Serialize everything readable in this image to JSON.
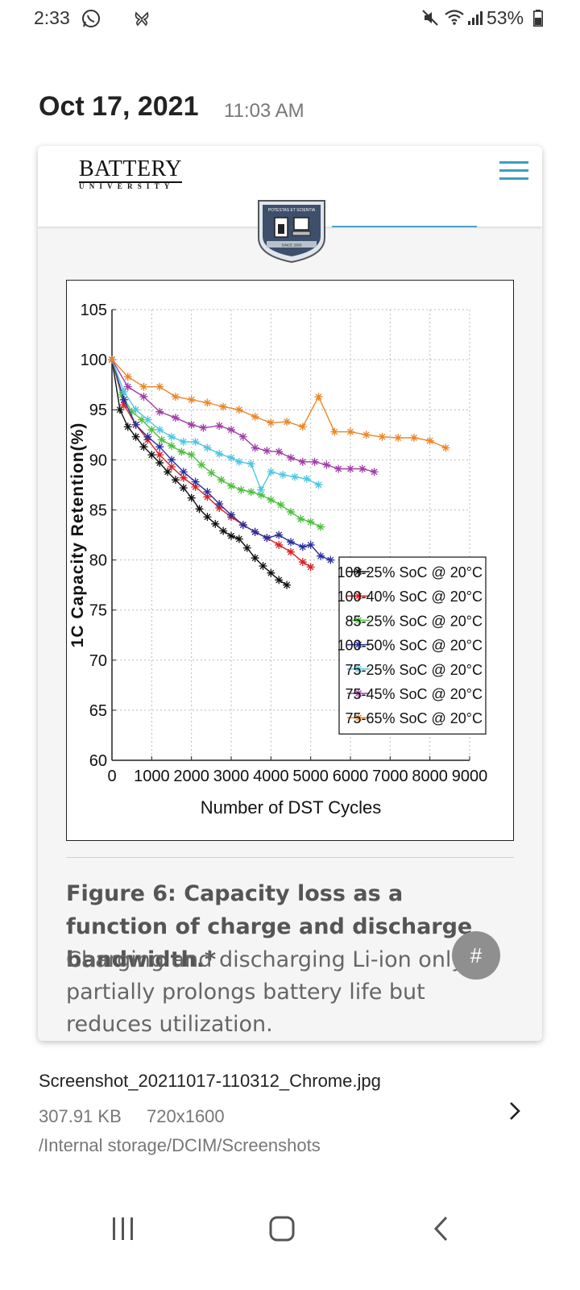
{
  "status_bar": {
    "time": "2:33",
    "battery": "53%",
    "icons": [
      "whatsapp-icon",
      "butterfly-icon",
      "mute-icon",
      "wifi-icon",
      "signal-icon",
      "battery-icon"
    ]
  },
  "header": {
    "date": "Oct 17, 2021",
    "time": "11:03 AM"
  },
  "site": {
    "logo_main": "BATTERY",
    "logo_sub": "UNIVERSITY",
    "emblem_top": "POTESTAS ET SCIENTIA",
    "emblem_bottom": "SINCE 2003",
    "menu_icon": "hamburger-menu-icon",
    "accent_color": "#3a9fc1"
  },
  "chart_data": {
    "type": "line",
    "xlabel": "Number of DST Cycles",
    "ylabel": "1C Capacity Retention(%)",
    "xlim": [
      0,
      9000
    ],
    "ylim": [
      60,
      105
    ],
    "x_ticks": [
      "0",
      "1000",
      "2000",
      "3000",
      "4000",
      "5000",
      "6000",
      "7000",
      "8000",
      "9000"
    ],
    "y_ticks": [
      "60",
      "65",
      "70",
      "75",
      "80",
      "85",
      "90",
      "95",
      "100",
      "105"
    ],
    "grid": true,
    "legend_position": "lower-right",
    "series": [
      {
        "name": "100-25% SoC @ 20°C",
        "color": "#111111",
        "points": [
          [
            0,
            100
          ],
          [
            200,
            95
          ],
          [
            400,
            93.3
          ],
          [
            600,
            92.3
          ],
          [
            800,
            91.3
          ],
          [
            1000,
            90.5
          ],
          [
            1200,
            89.7
          ],
          [
            1400,
            88.8
          ],
          [
            1600,
            88
          ],
          [
            1800,
            87.2
          ],
          [
            2000,
            86.2
          ],
          [
            2200,
            85.1
          ],
          [
            2400,
            84.3
          ],
          [
            2600,
            83.6
          ],
          [
            2800,
            82.9
          ],
          [
            3000,
            82.4
          ],
          [
            3200,
            82.1
          ],
          [
            3400,
            81.2
          ],
          [
            3600,
            80.2
          ],
          [
            3800,
            79.4
          ],
          [
            4000,
            78.7
          ],
          [
            4200,
            78
          ],
          [
            4400,
            77.5
          ]
        ]
      },
      {
        "name": "100-40% SoC @ 20°C",
        "color": "#d92027",
        "points": [
          [
            0,
            100
          ],
          [
            300,
            95.5
          ],
          [
            600,
            93.5
          ],
          [
            900,
            92
          ],
          [
            1200,
            90.5
          ],
          [
            1500,
            89.3
          ],
          [
            1800,
            88.2
          ],
          [
            2100,
            87.3
          ],
          [
            2400,
            86.3
          ],
          [
            2700,
            85.2
          ],
          [
            3000,
            84.3
          ],
          [
            3300,
            83.5
          ],
          [
            3600,
            82.8
          ],
          [
            3900,
            82.2
          ],
          [
            4200,
            81.5
          ],
          [
            4500,
            80.8
          ],
          [
            4800,
            79.8
          ],
          [
            5000,
            79.3
          ]
        ]
      },
      {
        "name": "85-25% SoC @ 20°C",
        "color": "#4fbf3f",
        "points": [
          [
            0,
            100
          ],
          [
            250,
            96.5
          ],
          [
            500,
            94.8
          ],
          [
            750,
            94
          ],
          [
            1000,
            93
          ],
          [
            1250,
            92
          ],
          [
            1500,
            91.4
          ],
          [
            1750,
            90.8
          ],
          [
            2000,
            90.5
          ],
          [
            2250,
            89.5
          ],
          [
            2500,
            88.7
          ],
          [
            2750,
            88
          ],
          [
            3000,
            87.4
          ],
          [
            3250,
            87
          ],
          [
            3500,
            86.8
          ],
          [
            3750,
            86.5
          ],
          [
            4000,
            86
          ],
          [
            4250,
            85.5
          ],
          [
            4500,
            84.8
          ],
          [
            4750,
            84.1
          ],
          [
            5000,
            83.8
          ],
          [
            5250,
            83.3
          ]
        ]
      },
      {
        "name": "100-50% SoC @ 20°C",
        "color": "#2a2f9e",
        "points": [
          [
            0,
            100
          ],
          [
            300,
            96
          ],
          [
            600,
            93.5
          ],
          [
            900,
            92.3
          ],
          [
            1200,
            91.3
          ],
          [
            1500,
            90
          ],
          [
            1800,
            88.8
          ],
          [
            2100,
            87.8
          ],
          [
            2400,
            86.8
          ],
          [
            2700,
            85.6
          ],
          [
            3000,
            84.5
          ],
          [
            3300,
            83.5
          ],
          [
            3600,
            82.8
          ],
          [
            3900,
            82.2
          ],
          [
            4200,
            82.5
          ],
          [
            4500,
            81.8
          ],
          [
            4800,
            81.3
          ],
          [
            5000,
            81.5
          ],
          [
            5250,
            80.4
          ],
          [
            5500,
            80
          ]
        ]
      },
      {
        "name": "75-25% SoC @ 20°C",
        "color": "#4ec6e0",
        "points": [
          [
            0,
            100
          ],
          [
            300,
            96.8
          ],
          [
            600,
            95
          ],
          [
            900,
            94
          ],
          [
            1200,
            93
          ],
          [
            1500,
            92.3
          ],
          [
            1800,
            91.8
          ],
          [
            2100,
            91.8
          ],
          [
            2400,
            91.2
          ],
          [
            2700,
            90.6
          ],
          [
            3000,
            90.2
          ],
          [
            3200,
            89.8
          ],
          [
            3500,
            89.6
          ],
          [
            3750,
            87
          ],
          [
            4000,
            88.8
          ],
          [
            4300,
            88.5
          ],
          [
            4600,
            88.3
          ],
          [
            4900,
            88.1
          ],
          [
            5200,
            87.5
          ]
        ]
      },
      {
        "name": "75-45% SoC @ 20°C",
        "color": "#a03ea8",
        "points": [
          [
            0,
            100
          ],
          [
            400,
            97.3
          ],
          [
            800,
            96.3
          ],
          [
            1200,
            94.8
          ],
          [
            1600,
            94.2
          ],
          [
            2000,
            93.5
          ],
          [
            2300,
            93.2
          ],
          [
            2700,
            93.4
          ],
          [
            3000,
            93
          ],
          [
            3300,
            92.3
          ],
          [
            3600,
            91.2
          ],
          [
            3900,
            90.9
          ],
          [
            4200,
            90.8
          ],
          [
            4500,
            90.2
          ],
          [
            4800,
            89.8
          ],
          [
            5100,
            89.8
          ],
          [
            5400,
            89.5
          ],
          [
            5700,
            89.1
          ],
          [
            6000,
            89.1
          ],
          [
            6300,
            89.1
          ],
          [
            6600,
            88.8
          ]
        ]
      },
      {
        "name": "75-65% SoC @ 20°C",
        "color": "#e8872a",
        "points": [
          [
            0,
            100
          ],
          [
            400,
            98.3
          ],
          [
            800,
            97.3
          ],
          [
            1200,
            97.3
          ],
          [
            1600,
            96.3
          ],
          [
            2000,
            96
          ],
          [
            2400,
            95.7
          ],
          [
            2800,
            95.3
          ],
          [
            3200,
            95
          ],
          [
            3600,
            94.3
          ],
          [
            4000,
            93.7
          ],
          [
            4400,
            93.8
          ],
          [
            4800,
            93.3
          ],
          [
            5200,
            96.3
          ],
          [
            5600,
            92.8
          ],
          [
            6000,
            92.8
          ],
          [
            6400,
            92.5
          ],
          [
            6800,
            92.3
          ],
          [
            7200,
            92.2
          ],
          [
            7600,
            92.2
          ],
          [
            8000,
            91.9
          ],
          [
            8400,
            91.2
          ]
        ]
      }
    ]
  },
  "caption": {
    "title": "Figure 6: Capacity loss as a function of charge and discharge bandwidth.*",
    "body": "Charging and discharging Li-ion only partially prolongs battery life but reduces utilization."
  },
  "hash_button": "#",
  "file": {
    "name": "Screenshot_20211017-110312_Chrome.jpg",
    "size": "307.91 KB",
    "dimensions": "720x1600",
    "path": "/Internal storage/DCIM/Screenshots"
  },
  "nav": {
    "icons": [
      "recent-apps-icon",
      "home-icon",
      "back-icon"
    ]
  }
}
